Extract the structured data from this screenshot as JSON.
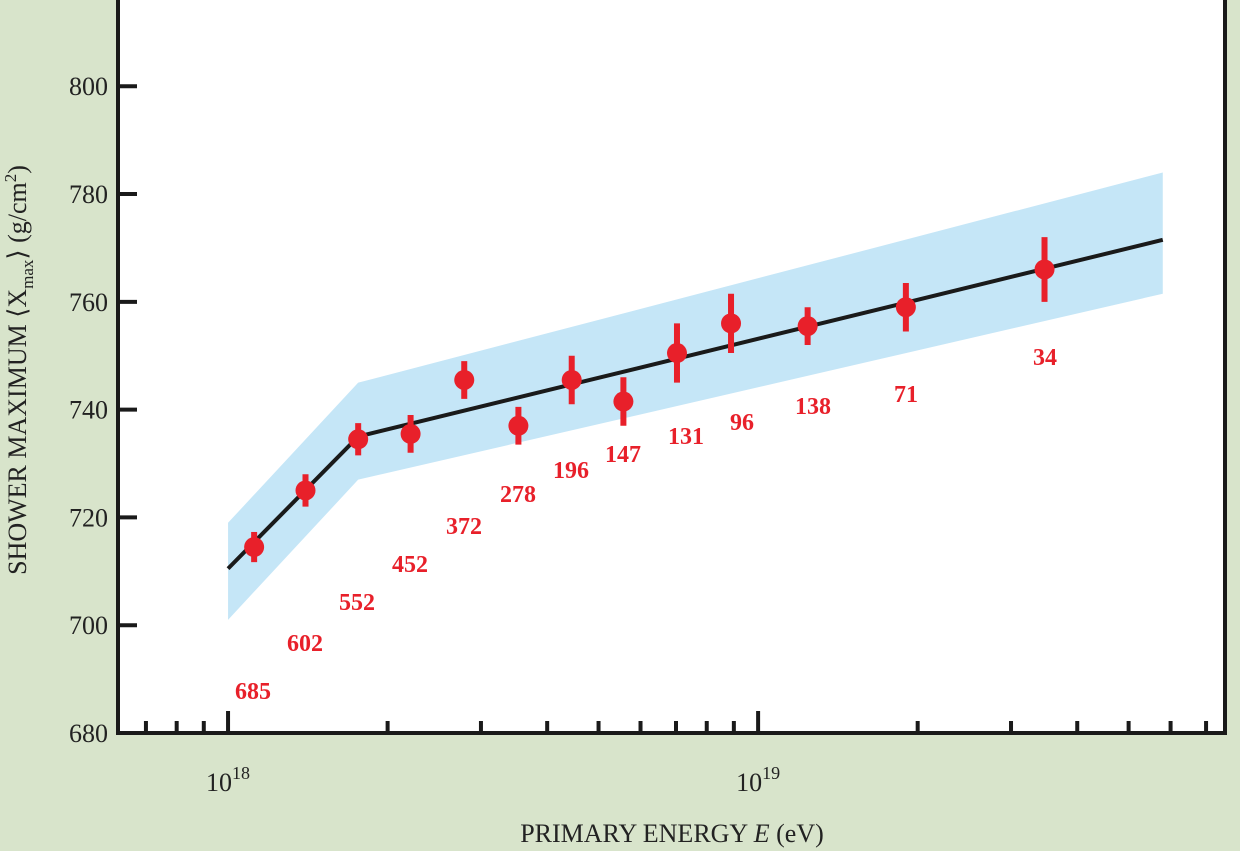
{
  "chart_data": {
    "type": "scatter",
    "xlabel": "PRIMARY ENERGY E (eV)",
    "ylabel": "SHOWER MAXIMUM ⟨X_max⟩ (g/cm²)",
    "xscale": "log",
    "xlim": [
      6.2e+17,
      7.6e+19
    ],
    "ylim": [
      680,
      816
    ],
    "x_major_ticks": [
      {
        "value": 1e+18,
        "label_base": "10",
        "label_exp": "18"
      },
      {
        "value": 1e+19,
        "label_base": "10",
        "label_exp": "19"
      }
    ],
    "y_ticks": [
      680,
      700,
      720,
      740,
      760,
      780,
      800
    ],
    "grid": false,
    "colors": {
      "background": "#d8e4cb",
      "plot": "#ffffff",
      "points": "#e8202a",
      "band": "#c5e6f7",
      "fit": "#1a1a1a"
    },
    "points": [
      {
        "x": 1.12e+18,
        "y": 714.5,
        "err": 2.8,
        "label": "685"
      },
      {
        "x": 1.4e+18,
        "y": 725,
        "err": 3,
        "label": "602"
      },
      {
        "x": 1.76e+18,
        "y": 734.5,
        "err": 3,
        "label": "552"
      },
      {
        "x": 2.21e+18,
        "y": 735.5,
        "err": 3.5,
        "label": "452"
      },
      {
        "x": 2.79e+18,
        "y": 745.5,
        "err": 3.5,
        "label": "372"
      },
      {
        "x": 3.53e+18,
        "y": 737,
        "err": 3.5,
        "label": "278"
      },
      {
        "x": 4.45e+18,
        "y": 745.5,
        "err": 4.5,
        "label": "196"
      },
      {
        "x": 5.57e+18,
        "y": 741.5,
        "err": 4.5,
        "label": "147"
      },
      {
        "x": 7.03e+18,
        "y": 750.5,
        "err": 5.5,
        "label": "131"
      },
      {
        "x": 8.89e+18,
        "y": 756,
        "err": 5.5,
        "label": "96"
      },
      {
        "x": 1.24e+19,
        "y": 755.5,
        "err": 3.5,
        "label": "138"
      },
      {
        "x": 1.9e+19,
        "y": 759,
        "err": 4.5,
        "label": "71"
      },
      {
        "x": 3.47e+19,
        "y": 766,
        "err": 6,
        "label": "34"
      }
    ],
    "fit_line": [
      {
        "x": 1e+18,
        "y": 710.5
      },
      {
        "x": 1.76e+18,
        "y": 735
      },
      {
        "x": 5.8e+19,
        "y": 771.5
      }
    ],
    "band_upper": [
      {
        "x": 1e+18,
        "y": 719
      },
      {
        "x": 1.76e+18,
        "y": 745
      },
      {
        "x": 5.8e+19,
        "y": 784
      }
    ],
    "band_lower": [
      {
        "x": 1e+18,
        "y": 701
      },
      {
        "x": 1.76e+18,
        "y": 727
      },
      {
        "x": 5.8e+19,
        "y": 761.5
      }
    ]
  }
}
